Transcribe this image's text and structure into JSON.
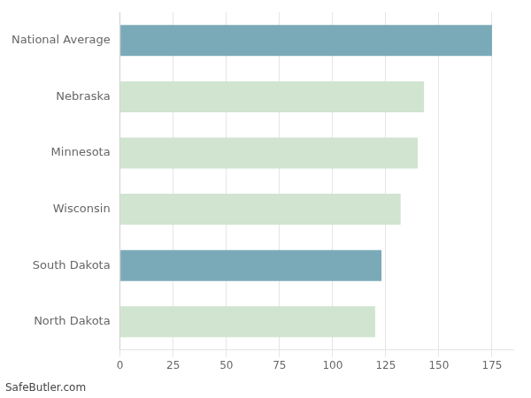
{
  "chart_data": {
    "type": "bar",
    "orientation": "horizontal",
    "categories": [
      "North Dakota",
      "South Dakota",
      "Wisconsin",
      "Minnesota",
      "Nebraska",
      "National Average"
    ],
    "values": [
      120,
      123,
      132,
      140,
      143,
      175
    ],
    "colors": [
      "#d0e4d0",
      "#7aaab8",
      "#d0e4d0",
      "#d0e4d0",
      "#d0e4d0",
      "#7aaab8"
    ],
    "xlim": [
      0,
      185
    ],
    "xticks": [
      0,
      25,
      50,
      75,
      100,
      125,
      150,
      175
    ],
    "grid": true,
    "annotations": [
      "SafeButler.com"
    ]
  }
}
